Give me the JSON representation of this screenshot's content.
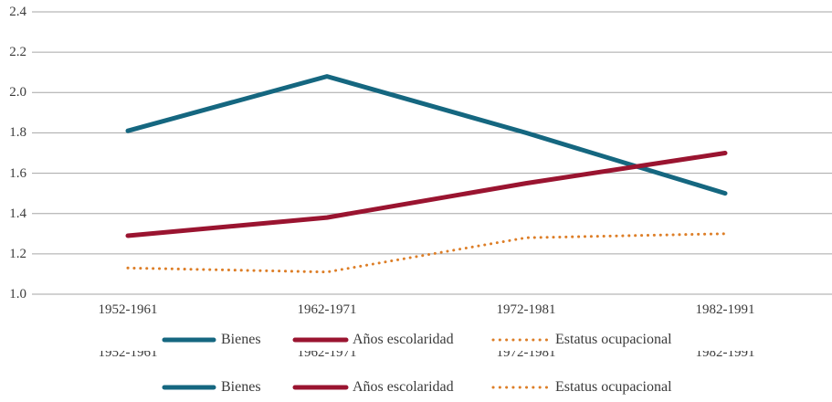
{
  "chart_data": {
    "type": "line",
    "title": "",
    "xlabel": "",
    "ylabel": "",
    "categories": [
      "1952-1961",
      "1962-1971",
      "1972-1981",
      "1982-1991"
    ],
    "series": [
      {
        "name": "Bienes",
        "color": "#156780",
        "line_style": "solid",
        "values": [
          1.81,
          2.08,
          1.8,
          1.5
        ]
      },
      {
        "name": "Años escolaridad",
        "color": "#9A1430",
        "line_style": "solid",
        "values": [
          1.29,
          1.38,
          1.55,
          1.7
        ]
      },
      {
        "name": "Estatus ocupacional",
        "color": "#DD7E27",
        "line_style": "dotted",
        "values": [
          1.13,
          1.11,
          1.28,
          1.3
        ]
      }
    ],
    "ylim": [
      1.0,
      2.4
    ],
    "ytick_labels": [
      "2.4",
      "2.2",
      "2.0",
      "1.8",
      "1.6",
      "1.4",
      "1.2",
      "1.0"
    ],
    "grid": "horizontal",
    "gridline_color": "#A6A6A6",
    "text_color": "#3A3A3A",
    "legend_position": "bottom",
    "legend_repeated": true,
    "x_axis_labels_repeated_clipped": true
  }
}
